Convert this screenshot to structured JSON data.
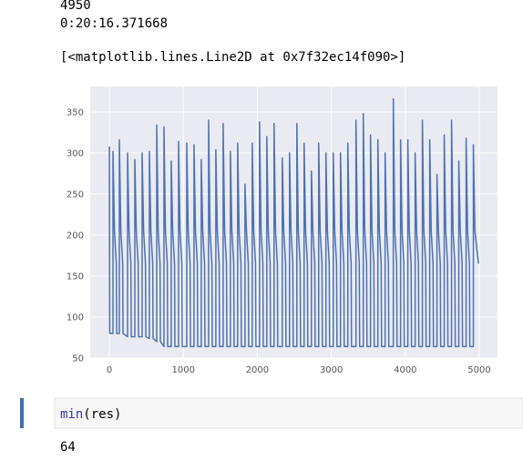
{
  "outputs": {
    "lines": [
      "4950",
      "0:20:16.371668"
    ],
    "repr": "[<matplotlib.lines.Line2D at 0x7f32ec14f090>]"
  },
  "chart_data": {
    "type": "line",
    "x": [
      0,
      5,
      49,
      49,
      69,
      94,
      99,
      135,
      135,
      155,
      180,
      185,
      246,
      246,
      266,
      291,
      296,
      344,
      344,
      364,
      389,
      394,
      443,
      443,
      463,
      488,
      493,
      541,
      541,
      561,
      586,
      591,
      640,
      640,
      660,
      685,
      690,
      738,
      738,
      758,
      783,
      788,
      836,
      836,
      856,
      881,
      886,
      935,
      935,
      955,
      980,
      985,
      1046,
      1046,
      1066,
      1091,
      1096,
      1144,
      1144,
      1164,
      1189,
      1194,
      1242,
      1242,
      1262,
      1287,
      1292,
      1341,
      1341,
      1361,
      1386,
      1391,
      1439,
      1439,
      1459,
      1484,
      1489,
      1538,
      1538,
      1558,
      1583,
      1588,
      1636,
      1636,
      1656,
      1681,
      1686,
      1734,
      1734,
      1754,
      1779,
      1784,
      1833,
      1833,
      1853,
      1878,
      1883,
      1931,
      1931,
      1951,
      1976,
      1981,
      2030,
      2030,
      2050,
      2075,
      2080,
      2128,
      2128,
      2148,
      2173,
      2178,
      2226,
      2226,
      2246,
      2271,
      2276,
      2337,
      2337,
      2357,
      2382,
      2387,
      2435,
      2435,
      2455,
      2480,
      2485,
      2534,
      2534,
      2554,
      2579,
      2584,
      2632,
      2632,
      2652,
      2677,
      2682,
      2731,
      2731,
      2751,
      2776,
      2781,
      2829,
      2829,
      2849,
      2874,
      2879,
      2927,
      2927,
      2947,
      2972,
      2977,
      3026,
      3026,
      3046,
      3071,
      3076,
      3124,
      3124,
      3144,
      3169,
      3174,
      3223,
      3223,
      3243,
      3268,
      3273,
      3333,
      3333,
      3353,
      3378,
      3383,
      3432,
      3432,
      3452,
      3477,
      3482,
      3530,
      3530,
      3550,
      3575,
      3580,
      3629,
      3629,
      3649,
      3674,
      3679,
      3727,
      3727,
      3747,
      3772,
      3777,
      3838,
      3838,
      3858,
      3883,
      3888,
      3936,
      3936,
      3956,
      3981,
      3986,
      4034,
      4034,
      4054,
      4079,
      4084,
      4133,
      4133,
      4153,
      4178,
      4183,
      4231,
      4231,
      4251,
      4276,
      4281,
      4330,
      4330,
      4350,
      4375,
      4380,
      4428,
      4428,
      4448,
      4473,
      4478,
      4526,
      4526,
      4546,
      4571,
      4576,
      4625,
      4625,
      4645,
      4670,
      4675,
      4723,
      4723,
      4743,
      4768,
      4773,
      4822,
      4822,
      4842,
      4867,
      4872,
      4920,
      4920,
      4940,
      4990
    ],
    "series": [
      {
        "color": "#4c72b0",
        "values": [
          308,
          80,
          80,
          302,
          205,
          165,
          80,
          80,
          316,
          205,
          165,
          80,
          76,
          300,
          205,
          165,
          76,
          76,
          292,
          205,
          165,
          76,
          76,
          300,
          205,
          165,
          76,
          74,
          302,
          205,
          165,
          74,
          70,
          334,
          205,
          165,
          70,
          64,
          332,
          205,
          165,
          64,
          64,
          290,
          205,
          165,
          64,
          64,
          314,
          205,
          165,
          64,
          64,
          312,
          205,
          165,
          64,
          64,
          310,
          205,
          165,
          64,
          64,
          292,
          205,
          165,
          64,
          64,
          340,
          205,
          165,
          64,
          64,
          304,
          205,
          165,
          64,
          64,
          336,
          205,
          165,
          64,
          64,
          302,
          205,
          165,
          64,
          64,
          312,
          205,
          165,
          64,
          64,
          262,
          205,
          165,
          64,
          64,
          312,
          205,
          165,
          64,
          64,
          338,
          205,
          165,
          64,
          64,
          320,
          205,
          165,
          64,
          64,
          336,
          205,
          165,
          64,
          64,
          294,
          205,
          165,
          64,
          64,
          300,
          205,
          165,
          64,
          64,
          336,
          205,
          165,
          64,
          64,
          312,
          205,
          165,
          64,
          64,
          278,
          205,
          165,
          64,
          64,
          312,
          205,
          165,
          64,
          64,
          300,
          205,
          165,
          64,
          64,
          300,
          205,
          165,
          64,
          64,
          300,
          205,
          165,
          64,
          64,
          312,
          205,
          165,
          64,
          64,
          340,
          205,
          165,
          64,
          64,
          348,
          205,
          165,
          64,
          64,
          322,
          205,
          165,
          64,
          64,
          316,
          205,
          165,
          64,
          64,
          300,
          205,
          165,
          64,
          64,
          366,
          205,
          165,
          64,
          64,
          316,
          205,
          165,
          64,
          64,
          316,
          205,
          165,
          64,
          64,
          300,
          205,
          165,
          64,
          64,
          340,
          205,
          165,
          64,
          64,
          316,
          205,
          165,
          64,
          64,
          274,
          205,
          165,
          64,
          64,
          322,
          205,
          165,
          64,
          64,
          340,
          205,
          165,
          64,
          64,
          290,
          205,
          165,
          64,
          64,
          318,
          205,
          165,
          64,
          64,
          310,
          205,
          165
        ]
      }
    ],
    "xlim": [
      -259,
      5246
    ],
    "ylim": [
      50,
      381
    ],
    "xticks": [
      0,
      1000,
      2000,
      3000,
      4000,
      5000
    ],
    "yticks": [
      50,
      100,
      150,
      200,
      250,
      300,
      350
    ],
    "grid": true
  },
  "cell": {
    "code": [
      "min",
      "(res)"
    ],
    "output": "64"
  }
}
